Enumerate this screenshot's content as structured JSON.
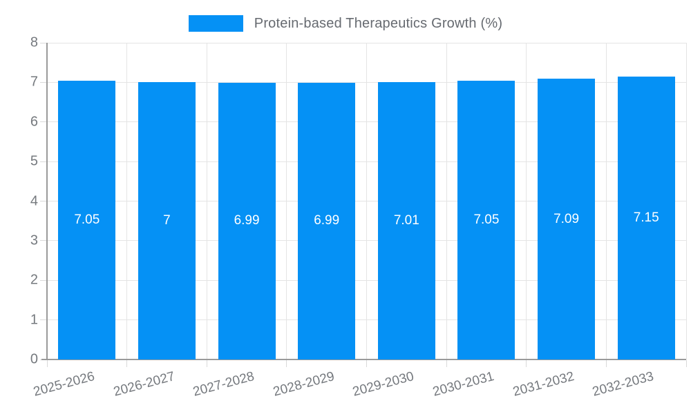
{
  "chart_data": {
    "type": "bar",
    "title": "Protein-based Therapeutics Growth (%)",
    "categories": [
      "2025-2026",
      "2026-2027",
      "2027-2028",
      "2028-2029",
      "2029-2030",
      "2030-2031",
      "2031-2032",
      "2032-2033"
    ],
    "values": [
      7.05,
      7,
      6.99,
      6.99,
      7.01,
      7.05,
      7.09,
      7.15
    ],
    "value_labels": [
      "7.05",
      "7",
      "6.99",
      "6.99",
      "7.01",
      "7.05",
      "7.09",
      "7.15"
    ],
    "xlabel": "",
    "ylabel": "",
    "ylim": [
      0,
      8
    ],
    "yticks": [
      0,
      1,
      2,
      3,
      4,
      5,
      6,
      7,
      8
    ],
    "grid": true,
    "legend_position": "top",
    "bar_color": "#0591f5",
    "label_color": "#ffffff",
    "axis_text_color": "#75797e",
    "gridline_color": "#e4e4e4",
    "axis_line_color": "#9a9a9a"
  }
}
